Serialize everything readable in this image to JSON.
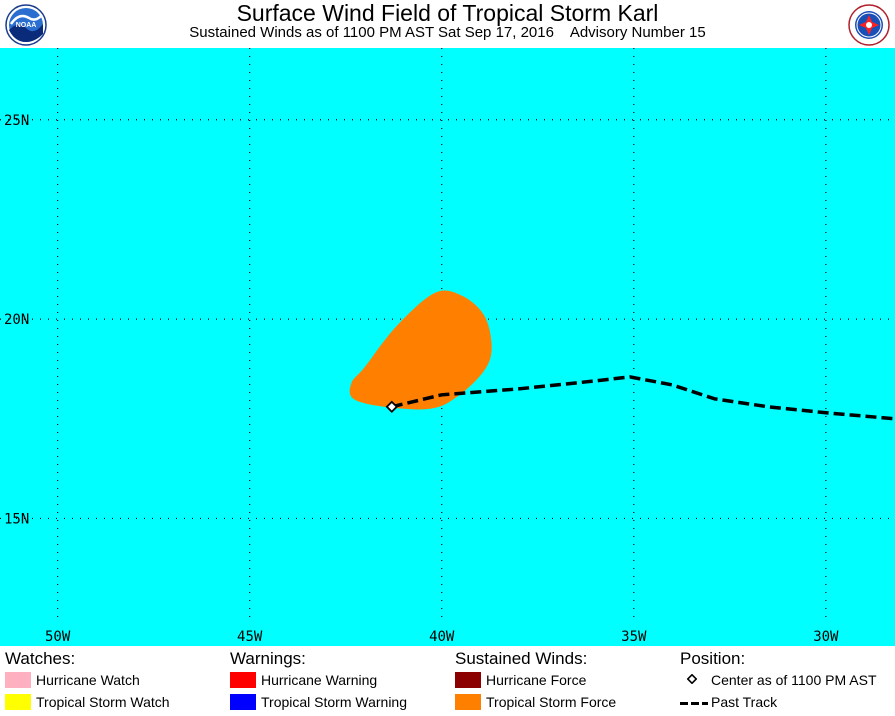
{
  "header": {
    "title": "Surface Wind Field of Tropical Storm Karl",
    "subtitle_left": "Sustained Winds as of 1100 PM AST Sat Sep 17, 2016",
    "subtitle_right": "Advisory Number 15",
    "left_logo_text": "NOAA"
  },
  "map": {
    "ocean_color": "#00ffff",
    "wind_field_color": "#ff8000",
    "track_color": "#000000",
    "lat_labels": [
      "25N",
      "20N",
      "15N"
    ],
    "lon_labels": [
      "50W",
      "45W",
      "40W",
      "35W",
      "30W"
    ],
    "lon_range": [
      -51.5,
      -28.2
    ],
    "lat_range": [
      11.8,
      26.8
    ],
    "gridlines": "dotted",
    "center": {
      "lon": -41.3,
      "lat": 17.8
    },
    "past_track": [
      {
        "lon": -41.3,
        "lat": 17.8
      },
      {
        "lon": -40.0,
        "lat": 18.1
      },
      {
        "lon": -38.0,
        "lat": 18.25
      },
      {
        "lon": -36.0,
        "lat": 18.45
      },
      {
        "lon": -35.1,
        "lat": 18.55
      },
      {
        "lon": -34.0,
        "lat": 18.35
      },
      {
        "lon": -32.9,
        "lat": 18.0
      },
      {
        "lon": -31.5,
        "lat": 17.8
      },
      {
        "lon": -30.0,
        "lat": 17.65
      },
      {
        "lon": -28.2,
        "lat": 17.5
      }
    ],
    "ts_wind_field": [
      {
        "lon": -42.0,
        "lat": 18.8
      },
      {
        "lon": -41.2,
        "lat": 19.8
      },
      {
        "lon": -40.2,
        "lat": 20.65
      },
      {
        "lon": -39.5,
        "lat": 20.6
      },
      {
        "lon": -38.9,
        "lat": 20.1
      },
      {
        "lon": -38.7,
        "lat": 19.3
      },
      {
        "lon": -38.9,
        "lat": 18.7
      },
      {
        "lon": -39.6,
        "lat": 18.05
      },
      {
        "lon": -40.3,
        "lat": 17.75
      },
      {
        "lon": -41.5,
        "lat": 17.8
      },
      {
        "lon": -42.3,
        "lat": 18.0
      },
      {
        "lon": -42.35,
        "lat": 18.4
      }
    ]
  },
  "legend": {
    "watches": {
      "heading": "Watches:",
      "items": [
        {
          "label": "Hurricane Watch",
          "color": "#ffb0c0"
        },
        {
          "label": "Tropical Storm Watch",
          "color": "#ffff00"
        }
      ]
    },
    "warnings": {
      "heading": "Warnings:",
      "items": [
        {
          "label": "Hurricane Warning",
          "color": "#ff0000"
        },
        {
          "label": "Tropical Storm Warning",
          "color": "#0000ff"
        }
      ]
    },
    "winds": {
      "heading": "Sustained Winds:",
      "items": [
        {
          "label": "Hurricane Force",
          "color": "#8b0000"
        },
        {
          "label": "Tropical Storm Force",
          "color": "#ff8000"
        }
      ]
    },
    "position": {
      "heading": "Position:",
      "center_label": "Center as of 1100 PM AST",
      "track_label": "Past Track"
    }
  }
}
